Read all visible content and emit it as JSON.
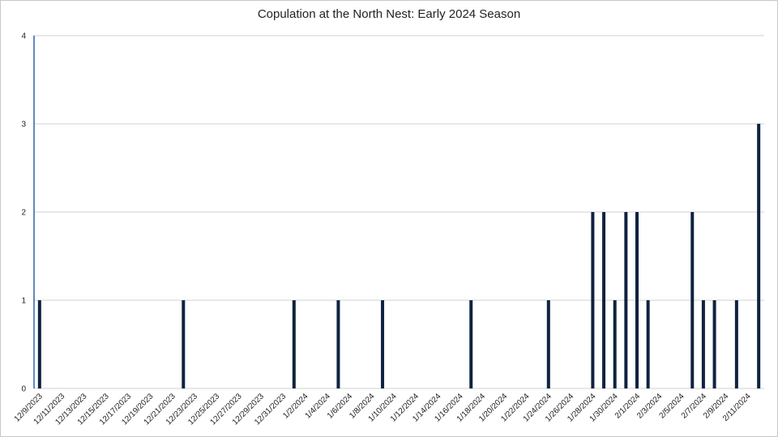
{
  "chart_data": {
    "type": "bar",
    "title": "Copulation at the North Nest: Early 2024 Season",
    "xlabel": "",
    "ylabel": "",
    "ylim": [
      0,
      4
    ],
    "yticks": [
      0,
      1,
      2,
      3,
      4
    ],
    "grid": true,
    "legend": "none",
    "x_start": "2023-12-09",
    "x_end": "2024-02-12",
    "tick_labels": [
      "12/9/2023",
      "12/11/2023",
      "12/13/2023",
      "12/15/2023",
      "12/17/2023",
      "12/19/2023",
      "12/21/2023",
      "12/23/2023",
      "12/25/2023",
      "12/27/2023",
      "12/29/2023",
      "12/31/2023",
      "1/2/2024",
      "1/4/2024",
      "1/6/2024",
      "1/8/2024",
      "1/10/2024",
      "1/12/2024",
      "1/14/2024",
      "1/16/2024",
      "1/18/2024",
      "1/20/2024",
      "1/22/2024",
      "1/24/2024",
      "1/26/2024",
      "1/28/2024",
      "1/30/2024",
      "2/1/2024",
      "2/3/2024",
      "2/5/2024",
      "2/7/2024",
      "2/9/2024",
      "2/11/2024"
    ],
    "points": [
      {
        "x": "2023-12-09",
        "y": 1
      },
      {
        "x": "2023-12-22",
        "y": 1
      },
      {
        "x": "2024-01-01",
        "y": 1
      },
      {
        "x": "2024-01-05",
        "y": 1
      },
      {
        "x": "2024-01-09",
        "y": 1
      },
      {
        "x": "2024-01-17",
        "y": 1
      },
      {
        "x": "2024-01-24",
        "y": 1
      },
      {
        "x": "2024-01-28",
        "y": 2
      },
      {
        "x": "2024-01-29",
        "y": 2
      },
      {
        "x": "2024-01-30",
        "y": 1
      },
      {
        "x": "2024-01-31",
        "y": 2
      },
      {
        "x": "2024-02-01",
        "y": 2
      },
      {
        "x": "2024-02-02",
        "y": 1
      },
      {
        "x": "2024-02-06",
        "y": 2
      },
      {
        "x": "2024-02-07",
        "y": 1
      },
      {
        "x": "2024-02-08",
        "y": 1
      },
      {
        "x": "2024-02-10",
        "y": 1
      },
      {
        "x": "2024-02-12",
        "y": 3
      }
    ],
    "colors": {
      "bar": "#0f2340",
      "grid": "#d0d0d0",
      "y_axis": "#2e62a8"
    }
  }
}
